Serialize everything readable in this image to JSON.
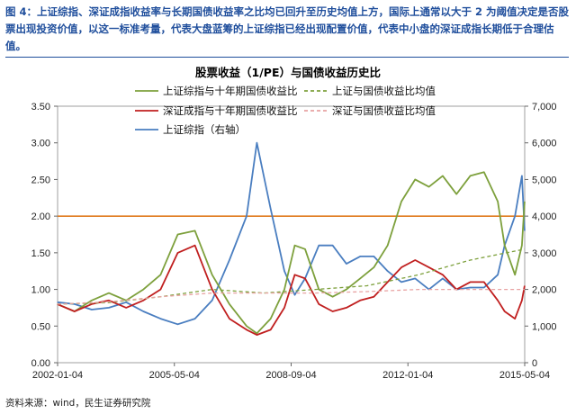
{
  "caption": "图 4：上证综指、深证成指收益率与长期国债收益率之比均已回升至历史均值上方，国际上通常以大于 2 为阈值决定是否股票出现投资价值，以这一标准考量，代表大盘蓝筹的上证综指已经出现配置价值，代表中小盘的深证成指长期低于合理估值。",
  "source": "资料来源：wind，民生证券研究院",
  "colors": {
    "sh": "#7da03c",
    "sh_avg": "#7da03c",
    "sz": "#c01f1f",
    "sz_avg": "#e8a3a3",
    "idx": "#4a7ec0",
    "threshold": "#e07b1e"
  },
  "chart_data": {
    "type": "line",
    "title": "股票收益（1/PE）与国债收益历史比",
    "x_ticks": [
      "2002-01-04",
      "2005-05-04",
      "2008-09-04",
      "2012-01-04",
      "2015-05-04"
    ],
    "x_tick_fraction": [
      0,
      0.25,
      0.5,
      0.75,
      1.0
    ],
    "x_range": [
      "2002-01-04",
      "2015-07-31"
    ],
    "y_left": {
      "range": [
        0,
        3.5
      ],
      "ticks": [
        "0.00",
        "0.50",
        "1.00",
        "1.50",
        "2.00",
        "2.50",
        "3.00",
        "3.50"
      ]
    },
    "y_right": {
      "range": [
        0,
        7000
      ],
      "ticks": [
        "0",
        "1,000",
        "2,000",
        "3,000",
        "4,000",
        "5,000",
        "6,000",
        "7,000"
      ]
    },
    "threshold": {
      "value": 2.0,
      "axis": "left"
    },
    "legend": [
      "上证综指与十年期国债收益比",
      "上证与国债收益比均值",
      "深证成指与十年期国债收益比",
      "深证与国债收益比均值",
      "上证综指（右轴）"
    ],
    "series": [
      {
        "name": "上证综指与十年期国债收益比",
        "axis": "left",
        "style": "solid",
        "x": [
          2002.0,
          2002.5,
          2003.0,
          2003.5,
          2004.0,
          2004.5,
          2005.0,
          2005.5,
          2006.0,
          2006.5,
          2007.0,
          2007.5,
          2007.8,
          2008.2,
          2008.6,
          2008.9,
          2009.2,
          2009.6,
          2010.0,
          2010.4,
          2010.8,
          2011.2,
          2011.6,
          2012.0,
          2012.4,
          2012.8,
          2013.2,
          2013.6,
          2014.0,
          2014.4,
          2014.8,
          2015.0,
          2015.3,
          2015.5,
          2015.58
        ],
        "y": [
          0.8,
          0.7,
          0.85,
          0.95,
          0.85,
          1.0,
          1.2,
          1.75,
          1.8,
          1.2,
          0.8,
          0.5,
          0.4,
          0.6,
          1.0,
          1.6,
          1.55,
          1.0,
          0.9,
          1.0,
          1.15,
          1.3,
          1.6,
          2.2,
          2.5,
          2.4,
          2.55,
          2.3,
          2.55,
          2.6,
          2.2,
          1.6,
          1.2,
          1.6,
          2.2
        ]
      },
      {
        "name": "上证与国债收益比均值",
        "axis": "left",
        "style": "dashed",
        "x": [
          2002.0,
          2003.5,
          2005.0,
          2006.5,
          2008.0,
          2009.5,
          2011.0,
          2012.5,
          2014.0,
          2015.58
        ],
        "y": [
          0.8,
          0.82,
          0.9,
          1.0,
          0.95,
          1.0,
          1.05,
          1.2,
          1.4,
          1.55
        ]
      },
      {
        "name": "深证成指与十年期国债收益比",
        "axis": "left",
        "style": "solid",
        "x": [
          2002.0,
          2002.5,
          2003.0,
          2003.5,
          2004.0,
          2004.5,
          2005.0,
          2005.5,
          2006.0,
          2006.5,
          2007.0,
          2007.5,
          2007.8,
          2008.2,
          2008.6,
          2008.9,
          2009.2,
          2009.6,
          2010.0,
          2010.4,
          2010.8,
          2011.2,
          2011.6,
          2012.0,
          2012.4,
          2012.8,
          2013.2,
          2013.6,
          2014.0,
          2014.4,
          2014.8,
          2015.0,
          2015.3,
          2015.5,
          2015.58
        ],
        "y": [
          0.8,
          0.7,
          0.8,
          0.85,
          0.75,
          0.85,
          1.0,
          1.5,
          1.6,
          1.0,
          0.6,
          0.45,
          0.38,
          0.45,
          0.75,
          1.2,
          1.15,
          0.8,
          0.7,
          0.75,
          0.85,
          0.9,
          1.1,
          1.3,
          1.4,
          1.3,
          1.2,
          1.0,
          1.1,
          1.1,
          0.85,
          0.7,
          0.6,
          0.85,
          1.05
        ]
      },
      {
        "name": "深证与国债收益比均值",
        "axis": "left",
        "style": "dashed",
        "x": [
          2002.0,
          2003.5,
          2005.0,
          2006.5,
          2008.0,
          2009.5,
          2011.0,
          2012.5,
          2014.0,
          2015.58
        ],
        "y": [
          0.8,
          0.83,
          0.9,
          0.95,
          0.95,
          0.95,
          0.97,
          1.0,
          1.0,
          1.0
        ]
      },
      {
        "name": "上证综指（右轴）",
        "axis": "right",
        "style": "solid",
        "x": [
          2002.0,
          2002.5,
          2003.0,
          2003.5,
          2004.0,
          2004.5,
          2005.0,
          2005.5,
          2006.0,
          2006.5,
          2007.0,
          2007.5,
          2007.8,
          2008.2,
          2008.6,
          2008.9,
          2009.2,
          2009.6,
          2010.0,
          2010.4,
          2010.8,
          2011.2,
          2011.6,
          2012.0,
          2012.4,
          2012.8,
          2013.2,
          2013.6,
          2014.0,
          2014.4,
          2014.8,
          2015.0,
          2015.3,
          2015.5,
          2015.58
        ],
        "y": [
          1650,
          1600,
          1450,
          1500,
          1650,
          1400,
          1200,
          1050,
          1200,
          1700,
          2800,
          4000,
          6000,
          4200,
          2500,
          1850,
          2300,
          3200,
          3200,
          2700,
          2900,
          2900,
          2500,
          2200,
          2300,
          2000,
          2300,
          2000,
          2050,
          2050,
          2400,
          3200,
          4000,
          5100,
          3600
        ]
      }
    ]
  }
}
